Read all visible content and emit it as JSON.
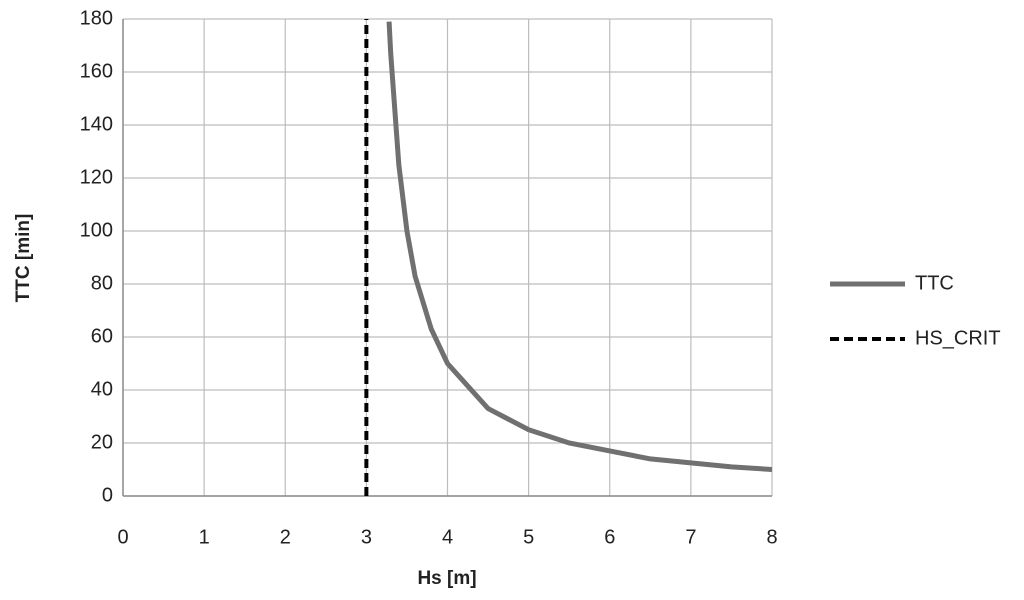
{
  "chart_data": {
    "type": "line",
    "xlabel": "Hs [m]",
    "ylabel": "TTC [min]",
    "xlim": [
      0,
      8
    ],
    "xticks": [
      0,
      1,
      2,
      3,
      4,
      5,
      6,
      7,
      8
    ],
    "ylim": [
      0,
      180
    ],
    "yticks": [
      0,
      20,
      40,
      60,
      80,
      100,
      120,
      140,
      160,
      180
    ],
    "grid": true,
    "legend": "right",
    "series": [
      {
        "name": "TTC",
        "color": "#707070",
        "line_style": "solid",
        "x": [
          3.28,
          3.3,
          3.4,
          3.5,
          3.6,
          3.8,
          4,
          4.5,
          5,
          5.5,
          6,
          6.5,
          7,
          7.5,
          8
        ],
        "values": [
          179,
          167,
          125,
          100,
          83,
          63,
          50,
          33,
          25,
          20,
          17,
          14,
          12.5,
          11,
          10
        ]
      },
      {
        "name": "HS_CRIT",
        "color": "#000000",
        "line_style": "dashed",
        "x": [
          3,
          3
        ],
        "values": [
          0,
          180
        ]
      }
    ]
  }
}
